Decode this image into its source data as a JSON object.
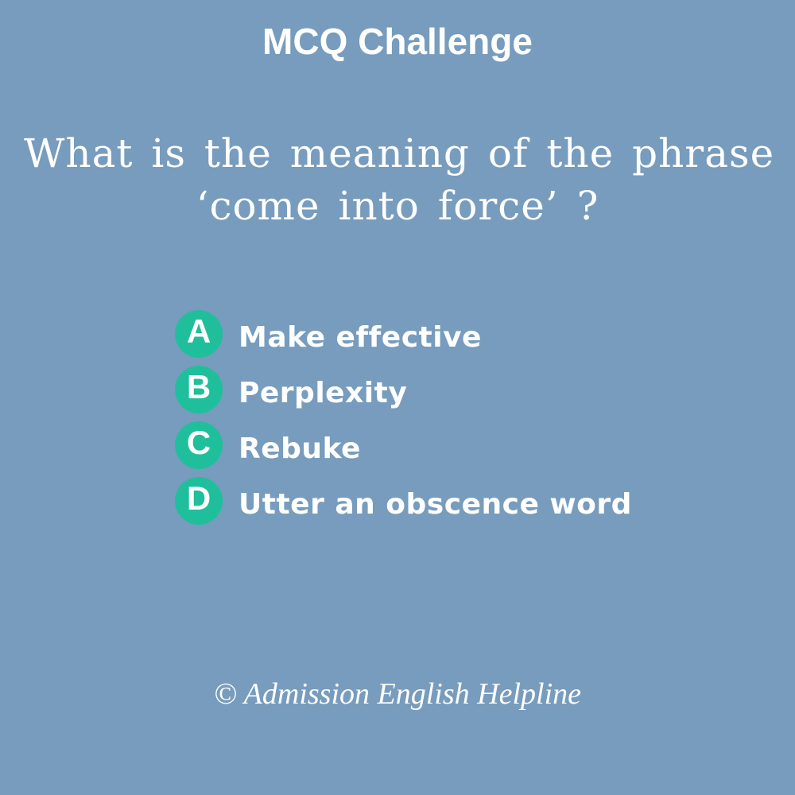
{
  "header": {
    "title": "MCQ Challenge"
  },
  "question": {
    "line1": "What is the meaning of the phrase",
    "line2": "‘come into force’ ?"
  },
  "options": [
    {
      "letter": "A",
      "text": "Make effective"
    },
    {
      "letter": "B",
      "text": "Perplexity"
    },
    {
      "letter": "C",
      "text": "Rebuke"
    },
    {
      "letter": "D",
      "text": "Utter an obscence word"
    }
  ],
  "footer": {
    "credit": "© Admission English Helpline"
  },
  "colors": {
    "background": "#779cbd",
    "badge": "#1fbf9b",
    "text": "#ffffff"
  }
}
